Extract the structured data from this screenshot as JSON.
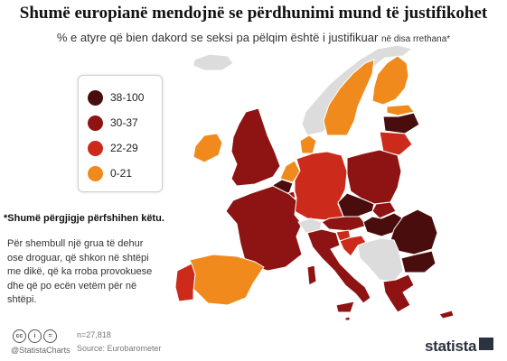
{
  "title": "Shumë europianë mendojnë se përdhunimi mund të justifikohet",
  "subtitle": {
    "main": "% e atyre që bien dakord se seksi pa pëlqim është i justifikuar",
    "suffix": "në disa rrethana*"
  },
  "legend": [
    {
      "label": "38-100",
      "color": "#4a0d0d"
    },
    {
      "label": "30-37",
      "color": "#8e1414"
    },
    {
      "label": "22-29",
      "color": "#cc2a1a"
    },
    {
      "label": "0-21",
      "color": "#f08a1c"
    }
  ],
  "map_regions": [
    {
      "icon": "iceland-shape",
      "class": "none"
    },
    {
      "icon": "norway-shape",
      "class": "none"
    },
    {
      "icon": "sweden-shape",
      "class": "0-21"
    },
    {
      "icon": "finland-shape",
      "class": "0-21"
    },
    {
      "icon": "estonia-shape",
      "class": "0-21"
    },
    {
      "icon": "latvia-shape",
      "class": "38-100"
    },
    {
      "icon": "lithuania-shape",
      "class": "22-29"
    },
    {
      "icon": "ireland-shape",
      "class": "0-21"
    },
    {
      "icon": "uk-shape",
      "class": "30-37"
    },
    {
      "icon": "denmark-shape",
      "class": "0-21"
    },
    {
      "icon": "netherlands-shape",
      "class": "0-21"
    },
    {
      "icon": "belgium-shape",
      "class": "38-100"
    },
    {
      "icon": "luxembourg-shape",
      "class": "30-37"
    },
    {
      "icon": "germany-shape",
      "class": "22-29"
    },
    {
      "icon": "poland-shape",
      "class": "30-37"
    },
    {
      "icon": "czechia-shape",
      "class": "38-100"
    },
    {
      "icon": "slovakia-shape",
      "class": "30-37"
    },
    {
      "icon": "austria-shape",
      "class": "30-37"
    },
    {
      "icon": "hungary-shape",
      "class": "38-100"
    },
    {
      "icon": "france-shape",
      "class": "30-37"
    },
    {
      "icon": "switzerland-shape",
      "class": "none"
    },
    {
      "icon": "slovenia-shape",
      "class": "22-29"
    },
    {
      "icon": "croatia-shape",
      "class": "22-29"
    },
    {
      "icon": "romania-shape",
      "class": "38-100"
    },
    {
      "icon": "bulgaria-shape",
      "class": "38-100"
    },
    {
      "icon": "balkans-shape",
      "class": "none"
    },
    {
      "icon": "italy-shape",
      "class": "30-37"
    },
    {
      "icon": "sardinia-shape",
      "class": "30-37"
    },
    {
      "icon": "sicily-shape",
      "class": "30-37"
    },
    {
      "icon": "greece-shape",
      "class": "30-37"
    },
    {
      "icon": "spain-shape",
      "class": "0-21"
    },
    {
      "icon": "portugal-shape",
      "class": "22-29"
    },
    {
      "icon": "malta-shape",
      "class": "30-37"
    },
    {
      "icon": "cyprus-shape",
      "class": "30-37"
    }
  ],
  "colors": {
    "none": "#dcdcdc",
    "border": "#ffffff"
  },
  "note": {
    "title": "*Shumë përgjigje përfshihen këtu.",
    "body": "Për shembull një grua të dehur ose droguar, që shkon në shtëpi me dikë, që ka rroba provokuese dhe që po ecën vetëm për në shtëpi."
  },
  "footer": {
    "cc_icons": [
      "cc-icon",
      "by-icon",
      "equals-icon"
    ],
    "handle": "@StatistaCharts",
    "sample": "n=27,818",
    "source": "Source: Eurobarometer",
    "brand": "statista"
  }
}
